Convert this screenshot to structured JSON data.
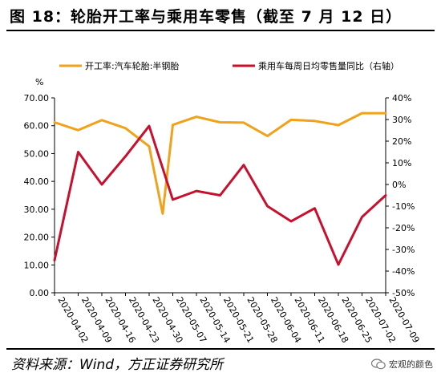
{
  "header": {
    "title": "图 18：轮胎开工率与乘用车零售（截至 7 月 12 日）"
  },
  "footer": {
    "source": "资料来源：Wind，方正证券研究所",
    "watermark": "宏观的颜色"
  },
  "chart_data": {
    "type": "line",
    "title": "图 18：轮胎开工率与乘用车零售（截至 7 月 12 日）",
    "legend_position": "top",
    "grid": false,
    "categories": [
      "2020-04-02",
      "2020-04-09",
      "2020-04-16",
      "2020-04-23",
      "2020-04-30",
      "2020-05-07",
      "2020-05-14",
      "2020-05-21",
      "2020-05-28",
      "2020-06-04",
      "2020-06-11",
      "2020-06-18",
      "2020-06-25",
      "2020-07-02",
      "2020-07-09"
    ],
    "x": [
      "2020-04-02",
      "2020-04-05",
      "2020-04-09",
      "2020-04-16",
      "2020-04-23",
      "2020-04-29",
      "2020-05-04",
      "2020-05-07",
      "2020-05-14",
      "2020-05-21",
      "2020-05-28",
      "2020-06-04",
      "2020-06-11",
      "2020-06-18",
      "2020-06-25",
      "2020-07-02",
      "2020-07-09"
    ],
    "left_axis": {
      "unit": "%",
      "ticks": [
        "0.00",
        "10.00",
        "20.00",
        "30.00",
        "40.00",
        "50.00",
        "60.00",
        "70.00"
      ],
      "ylim": [
        0,
        70
      ]
    },
    "right_axis": {
      "ticks": [
        "-50%",
        "-40%",
        "-30%",
        "-20%",
        "-10%",
        "0%",
        "10%",
        "20%",
        "30%",
        "40%"
      ],
      "ylim": [
        -50,
        40
      ]
    },
    "series": [
      {
        "name": "开工率:汽车轮胎:半钢胎",
        "axis": "left",
        "color": "#F0A21B",
        "x": [
          "2020-04-02",
          "2020-04-09",
          "2020-04-16",
          "2020-04-23",
          "2020-04-30",
          "2020-05-04",
          "2020-05-07",
          "2020-05-14",
          "2020-05-21",
          "2020-05-28",
          "2020-06-04",
          "2020-06-11",
          "2020-06-18",
          "2020-06-25",
          "2020-07-02",
          "2020-07-09"
        ],
        "values": [
          61.2,
          58.4,
          62.0,
          59.1,
          52.6,
          28.4,
          60.3,
          63.2,
          61.2,
          61.1,
          56.3,
          62.1,
          61.7,
          60.2,
          64.5,
          64.5
        ]
      },
      {
        "name": "乘用车每周日均零售量同比（右轴）",
        "axis": "right",
        "color": "#C8102E",
        "x": [
          "2020-04-02",
          "2020-04-09",
          "2020-04-16",
          "2020-04-23",
          "2020-04-30",
          "2020-05-07",
          "2020-05-14",
          "2020-05-21",
          "2020-05-28",
          "2020-06-04",
          "2020-06-11",
          "2020-06-18",
          "2020-06-25",
          "2020-07-02",
          "2020-07-09"
        ],
        "values": [
          -35,
          15,
          0,
          13,
          27,
          -7,
          -3,
          -5,
          9,
          -10,
          -17,
          -11,
          -37,
          -15,
          -5
        ]
      }
    ]
  }
}
